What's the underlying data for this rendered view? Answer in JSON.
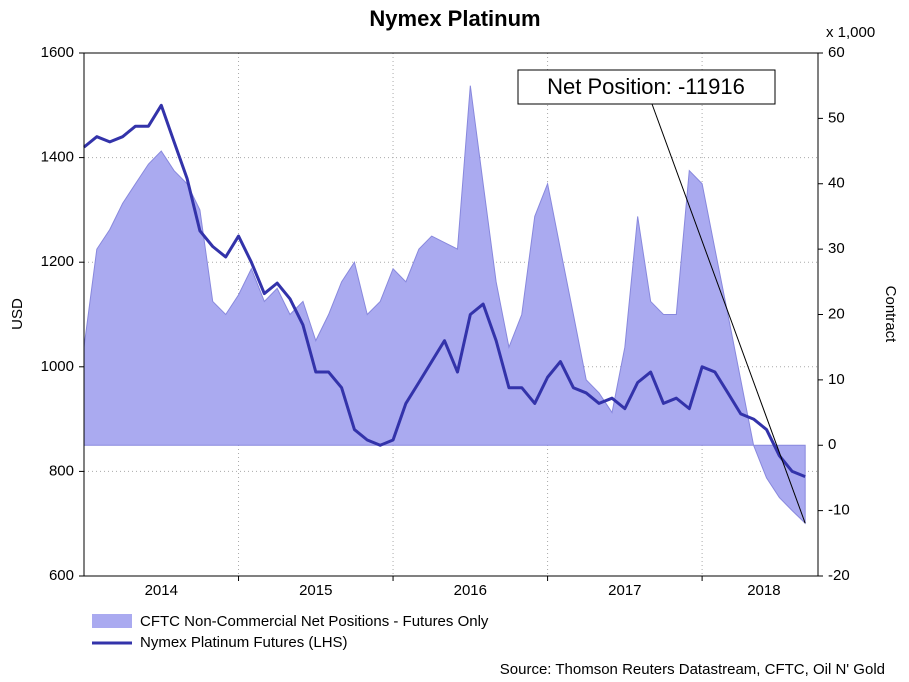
{
  "chart_data": {
    "type": "line",
    "title": "Nymex Platinum",
    "y_label": "USD",
    "y2_label": "Contract",
    "y2_unit": "x 1,000",
    "source": "Source: Thomson Reuters Datastream, CFTC, Oil N' Gold",
    "annotation": "Net Position: -11916",
    "xlim": [
      2014,
      2018.75
    ],
    "xticks": [
      {
        "value": 2014.5,
        "label": "2014"
      },
      {
        "value": 2015.5,
        "label": "2015"
      },
      {
        "value": 2016.5,
        "label": "2016"
      },
      {
        "value": 2017.5,
        "label": "2017"
      },
      {
        "value": 2018.4,
        "label": "2018"
      }
    ],
    "xgrid": [
      2015,
      2016,
      2017,
      2018
    ],
    "ylim": [
      600,
      1600
    ],
    "yticks": [
      600,
      800,
      1000,
      1200,
      1400,
      1600
    ],
    "y2lim": [
      -20,
      60
    ],
    "y2ticks": [
      -20,
      -10,
      0,
      10,
      20,
      30,
      40,
      50,
      60
    ],
    "grid": true,
    "x": [
      2014,
      2014.083,
      2014.167,
      2014.25,
      2014.333,
      2014.417,
      2014.5,
      2014.583,
      2014.667,
      2014.75,
      2014.833,
      2014.917,
      2015,
      2015.083,
      2015.167,
      2015.25,
      2015.333,
      2015.417,
      2015.5,
      2015.583,
      2015.667,
      2015.75,
      2015.833,
      2015.917,
      2016,
      2016.083,
      2016.167,
      2016.25,
      2016.333,
      2016.417,
      2016.5,
      2016.583,
      2016.667,
      2016.75,
      2016.833,
      2016.917,
      2017,
      2017.083,
      2017.167,
      2017.25,
      2017.333,
      2017.417,
      2017.5,
      2017.583,
      2017.667,
      2017.75,
      2017.833,
      2017.917,
      2018,
      2018.083,
      2018.167,
      2018.25,
      2018.333,
      2018.417,
      2018.5,
      2018.583,
      2018.667
    ],
    "series": [
      {
        "name": "CFTC Non-Commercial Net Positions - Futures Only",
        "type": "area",
        "axis": "y2",
        "color": "#aaaaf0",
        "stroke": "#8888dd",
        "values": [
          15,
          30,
          33,
          37,
          40,
          43,
          45,
          42,
          40,
          36,
          22,
          20,
          23,
          27,
          22,
          24,
          20,
          22,
          16,
          20,
          25,
          28,
          20,
          22,
          27,
          25,
          30,
          32,
          31,
          30,
          55,
          40,
          25,
          15,
          20,
          35,
          40,
          30,
          20,
          10,
          8,
          5,
          15,
          35,
          22,
          20,
          20,
          42,
          40,
          30,
          20,
          10,
          0,
          -5,
          -8,
          -10,
          -11.916
        ]
      },
      {
        "name": "Nymex Platinum Futures (LHS)",
        "type": "line",
        "axis": "y",
        "color": "#3333aa",
        "values": [
          1420,
          1440,
          1430,
          1440,
          1460,
          1460,
          1500,
          1430,
          1360,
          1260,
          1230,
          1210,
          1250,
          1200,
          1140,
          1160,
          1130,
          1080,
          990,
          990,
          960,
          880,
          860,
          850,
          860,
          930,
          970,
          1010,
          1050,
          990,
          1100,
          1120,
          1050,
          960,
          960,
          930,
          980,
          1010,
          960,
          950,
          930,
          940,
          920,
          970,
          990,
          930,
          940,
          920,
          1000,
          990,
          950,
          910,
          900,
          880,
          830,
          800,
          790
        ]
      }
    ]
  }
}
